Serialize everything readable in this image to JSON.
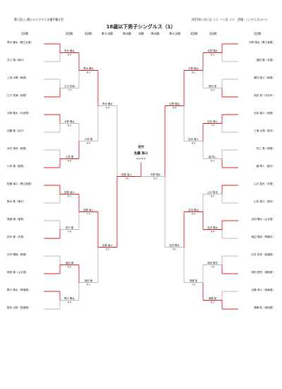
{
  "header": {
    "org": "第○回○○県ジュニアテニス選手権大会",
    "info": "2015年○月○日（○）〜○日（○）　会場：○○テニスコート",
    "title": "18歳以下男子シングルス（1）"
  },
  "columns": [
    "1回戦",
    "2回戦",
    "3回戦",
    "準々決勝",
    "準決勝",
    "決勝",
    "準決勝",
    "準々決勝",
    "3回戦",
    "2回戦",
    "1回戦"
  ],
  "left": {
    "players": [
      "青木 健太（県立北高）",
      "井上 翔（南中）",
      "上田 大輝（東高）",
      "江口 拓海（西高）",
      "大野 颯太（中央高）",
      "加藤 陸（北中）",
      "木村 悠真（桜高）",
      "小林 蓮（緑高）",
      "佐藤 海斗（県立南高）",
      "鈴木 蒼（東中）",
      "高橋 湊（星高）",
      "田中 樹（光高）",
      "中村 陽翔（港高）",
      "西田 律（山手高）",
      "野口 奏太（青葉高）",
      "橋本 大和（若葉高）"
    ],
    "rounds": [
      [
        {
          "winner": "青木 健太",
          "score": "6-2"
        },
        {
          "winner": "江口 拓海",
          "score": "7-5"
        },
        {
          "winner": "大野 颯太",
          "score": "6-3"
        },
        {
          "winner": "小林 蓮",
          "score": "6-4"
        },
        {
          "winner": "佐藤 海斗",
          "score": "6-1"
        },
        {
          "winner": "田中 樹",
          "score": "7-6"
        },
        {
          "winner": "西田 律",
          "score": "6-0"
        },
        {
          "winner": "野口 奏太",
          "score": "6-4"
        }
      ],
      [
        {
          "winner": "青木 健太",
          "score": "6-3"
        },
        {
          "winner": "小林 蓮",
          "score": "6-4"
        },
        {
          "winner": "佐藤 海斗",
          "score": "7-5"
        },
        {
          "winner": "西田 律",
          "score": "6-2"
        }
      ],
      [
        {
          "winner": "青木 健太",
          "score": "6-4"
        },
        {
          "winner": "佐藤 海斗",
          "score": "6-3"
        }
      ],
      [
        {
          "winner": "佐藤 海斗",
          "score": "7-6"
        }
      ]
    ]
  },
  "right": {
    "players": [
      "平野 翔太（県立東高）",
      "福田 蓮（北高）",
      "藤井 陸斗（南高）",
      "前田 悠（中央中）",
      "松本 湊斗（西高）",
      "三浦 大翔（桜中）",
      "村上 颯（緑高）",
      "森 晴人（星中）",
      "山口 智也（光高）",
      "山本 優斗（港中）",
      "吉田 陽太（山手高）",
      "渡辺 颯真（青葉中）",
      "石井 拓真（若葉高）",
      "岡田 蒼空（港南高）",
      "近藤 悠斗（城東高）",
      "斉藤 航（城西高）"
    ],
    "rounds": [
      [
        {
          "winner": "平野 翔太",
          "score": "6-1"
        },
        {
          "winner": "前田 悠",
          "score": "6-4"
        },
        {
          "winner": "松本 湊斗",
          "score": "7-5"
        },
        {
          "winner": "森 晴人",
          "score": "6-3"
        },
        {
          "winner": "山口 智也",
          "score": "6-2"
        },
        {
          "winner": "吉田 陽太",
          "score": "6-4"
        },
        {
          "winner": "岡田 蒼空",
          "score": "7-6"
        },
        {
          "winner": "斉藤 航",
          "score": "6-3"
        }
      ],
      [
        {
          "winner": "平野 翔太",
          "score": "6-2"
        },
        {
          "winner": "松本 湊斗",
          "score": "6-4"
        },
        {
          "winner": "吉田 陽太",
          "score": "6-3"
        },
        {
          "winner": "斉藤 航",
          "score": "7-5"
        }
      ],
      [
        {
          "winner": "平野 翔太",
          "score": "6-4"
        },
        {
          "winner": "吉田 陽太",
          "score": "6-2"
        }
      ],
      [
        {
          "winner": "平野 翔太",
          "score": "6-3"
        }
      ]
    ]
  },
  "final": {
    "label": "優勝",
    "winner": "佐藤 海斗",
    "score": "6-4 6-3"
  }
}
